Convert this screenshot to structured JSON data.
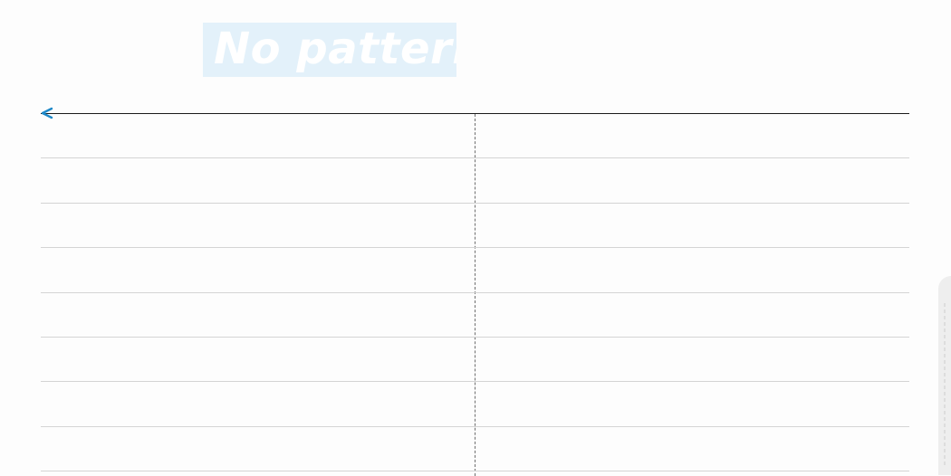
{
  "header": {
    "title": "No pattern"
  },
  "table": {
    "columns": 2,
    "rows": 8,
    "cells": [
      [
        "",
        ""
      ],
      [
        "",
        ""
      ],
      [
        "",
        ""
      ],
      [
        "",
        ""
      ],
      [
        "",
        ""
      ],
      [
        "",
        ""
      ],
      [
        "",
        ""
      ],
      [
        "",
        ""
      ]
    ]
  },
  "icons": {
    "back": "chevron-left-icon",
    "side_panel": "drag-handle-icon"
  },
  "colors": {
    "title_background": "#e3f1fa",
    "title_text": "#ffffff",
    "accent": "#1e88c8",
    "rule": "#1a1a1a",
    "row_line": "#d4d4d4",
    "divider": "#6e6e6e"
  }
}
